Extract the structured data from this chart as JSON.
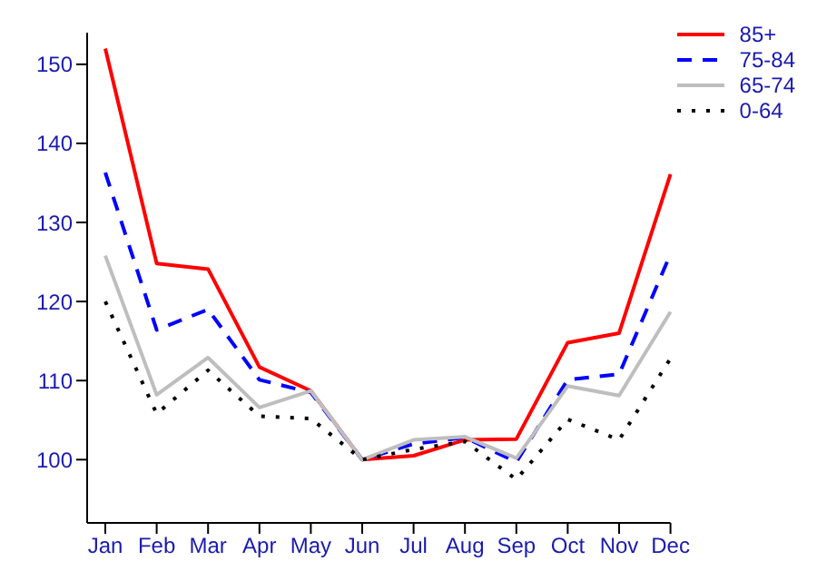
{
  "chart_data": {
    "type": "line",
    "categories": [
      "Jan",
      "Feb",
      "Mar",
      "Apr",
      "May",
      "Jun",
      "Jul",
      "Aug",
      "Sep",
      "Oct",
      "Nov",
      "Dec"
    ],
    "series": [
      {
        "name": "85+",
        "color": "#ff0000",
        "line_style": "solid",
        "values": [
          152,
          124.8,
          124.1,
          111.7,
          108.7,
          100,
          100.5,
          102.5,
          102.6,
          114.8,
          116,
          136.1
        ]
      },
      {
        "name": "75-84",
        "color": "#0000ff",
        "line_style": "dashed",
        "values": [
          136.3,
          116.4,
          119,
          110.1,
          108.5,
          100,
          102,
          102.8,
          99.7,
          110.1,
          110.8,
          126
        ]
      },
      {
        "name": "65-74",
        "color": "#bebebe",
        "line_style": "solid",
        "values": [
          125.8,
          108.2,
          112.9,
          106.6,
          108.7,
          100,
          102.5,
          102.9,
          100.2,
          109.3,
          108.1,
          118.7
        ]
      },
      {
        "name": "0-64",
        "color": "#000000",
        "line_style": "dotted",
        "values": [
          120,
          105.8,
          111.3,
          105.5,
          105.2,
          100,
          101.3,
          102.3,
          97.5,
          105.1,
          102.5,
          112.8
        ]
      }
    ],
    "ylim": [
      92,
      154
    ],
    "yticks": [
      100,
      110,
      120,
      130,
      140,
      150
    ],
    "grid": false,
    "legend": "top right",
    "marker": "none"
  }
}
